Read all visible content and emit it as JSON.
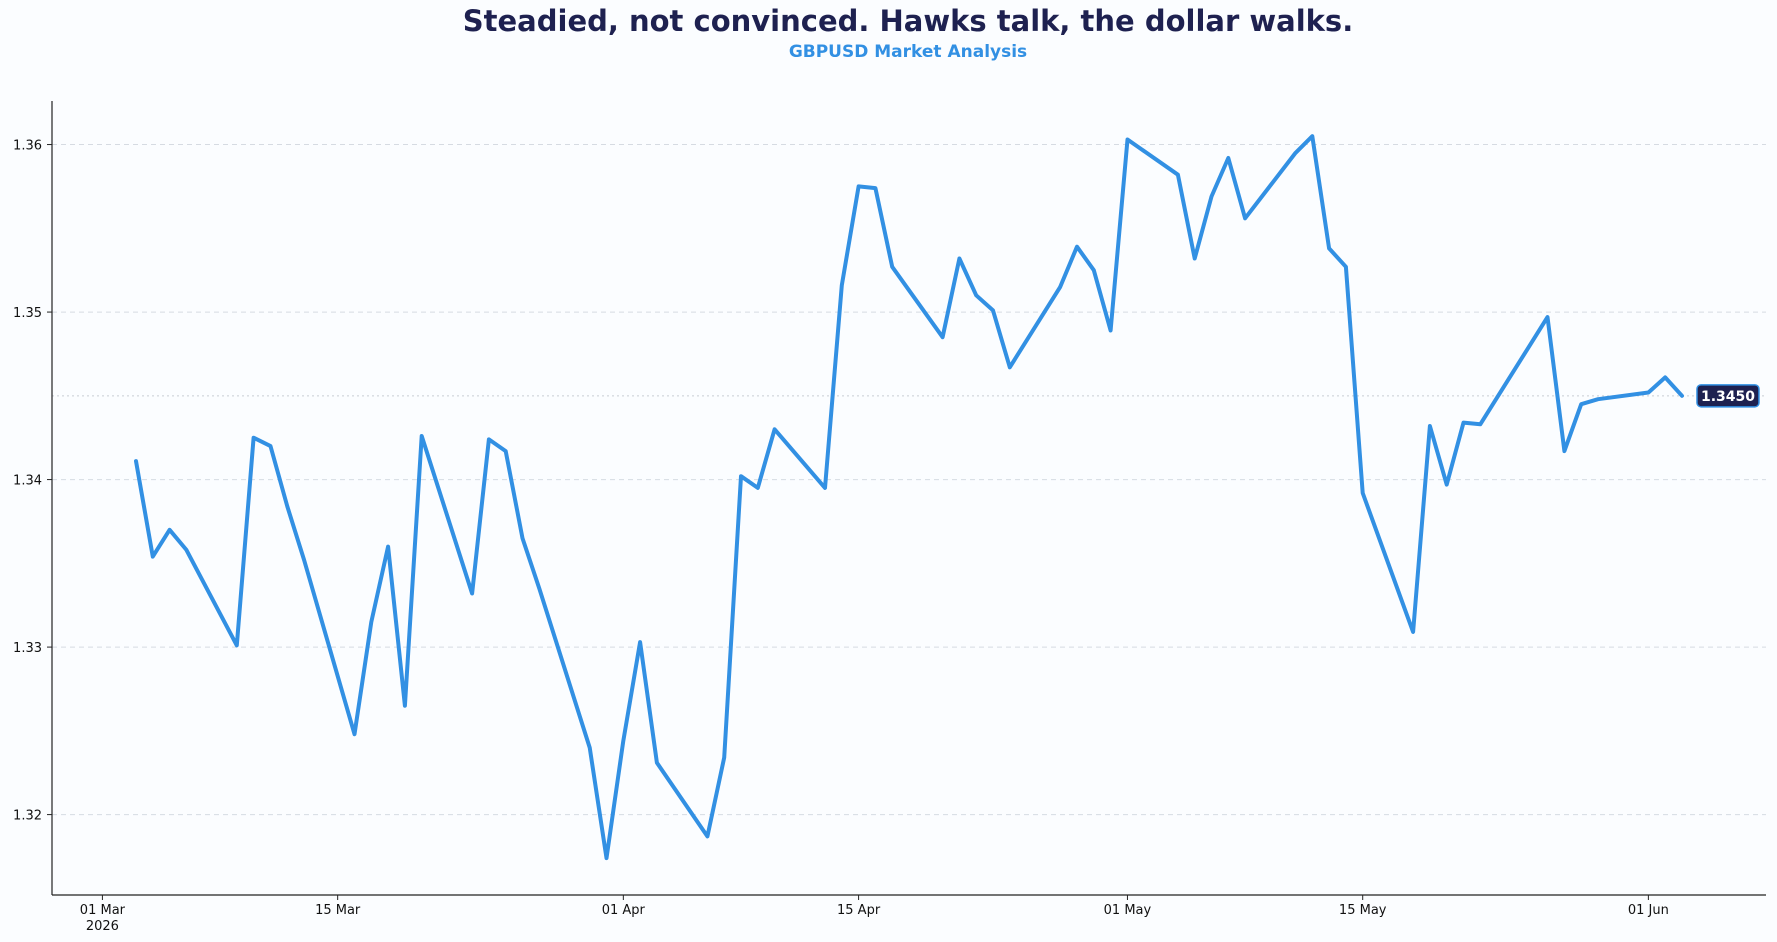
{
  "chart_data": {
    "type": "line",
    "title": "Steadied, not convinced. Hawks talk, the dollar walks.",
    "subtitle": "GBPUSD Market Analysis",
    "xlabel": "",
    "ylabel": "",
    "x_range": [
      "2026-02-26",
      "2026-06-08"
    ],
    "ylim": [
      1.3152,
      1.3626
    ],
    "y_ticks": [
      {
        "value": 1.32,
        "label": "1.32"
      },
      {
        "value": 1.33,
        "label": "1.33"
      },
      {
        "value": 1.34,
        "label": "1.34"
      },
      {
        "value": 1.35,
        "label": "1.35"
      },
      {
        "value": 1.36,
        "label": "1.36"
      }
    ],
    "x_ticks": [
      {
        "date": "2026-03-01",
        "label": "01 Mar",
        "sublabel": "2026"
      },
      {
        "date": "2026-03-15",
        "label": "15 Mar",
        "sublabel": ""
      },
      {
        "date": "2026-04-01",
        "label": "01 Apr",
        "sublabel": ""
      },
      {
        "date": "2026-04-15",
        "label": "15 Apr",
        "sublabel": ""
      },
      {
        "date": "2026-05-01",
        "label": "01 May",
        "sublabel": ""
      },
      {
        "date": "2026-05-15",
        "label": "15 May",
        "sublabel": ""
      },
      {
        "date": "2026-06-01",
        "label": "01 Jun",
        "sublabel": ""
      }
    ],
    "grid": "horizontal dashed",
    "reference_line": {
      "value": 1.345,
      "style": "dotted"
    },
    "last_value_label": "1.3450",
    "series": [
      {
        "name": "",
        "color": "#3290e3",
        "x": [
          "2026-03-03",
          "2026-03-04",
          "2026-03-05",
          "2026-03-06",
          "2026-03-09",
          "2026-03-10",
          "2026-03-11",
          "2026-03-12",
          "2026-03-13",
          "2026-03-16",
          "2026-03-17",
          "2026-03-18",
          "2026-03-19",
          "2026-03-20",
          "2026-03-23",
          "2026-03-24",
          "2026-03-25",
          "2026-03-26",
          "2026-03-27",
          "2026-03-30",
          "2026-03-31",
          "2026-04-01",
          "2026-04-02",
          "2026-04-03",
          "2026-04-06",
          "2026-04-07",
          "2026-04-08",
          "2026-04-09",
          "2026-04-10",
          "2026-04-13",
          "2026-04-14",
          "2026-04-15",
          "2026-04-16",
          "2026-04-17",
          "2026-04-20",
          "2026-04-21",
          "2026-04-22",
          "2026-04-23",
          "2026-04-24",
          "2026-04-27",
          "2026-04-28",
          "2026-04-29",
          "2026-04-30",
          "2026-05-01",
          "2026-05-04",
          "2026-05-05",
          "2026-05-06",
          "2026-05-07",
          "2026-05-08",
          "2026-05-11",
          "2026-05-12",
          "2026-05-13",
          "2026-05-14",
          "2026-05-15",
          "2026-05-18",
          "2026-05-19",
          "2026-05-20",
          "2026-05-21",
          "2026-05-22",
          "2026-05-25",
          "2026-05-26",
          "2026-05-27",
          "2026-05-28",
          "2026-05-29",
          "2026-06-01",
          "2026-06-02",
          "2026-06-03"
        ],
        "values": [
          1.3411,
          1.3354,
          1.337,
          1.3358,
          1.3301,
          1.3425,
          1.342,
          1.3384,
          1.3352,
          1.3248,
          1.3315,
          1.336,
          1.3265,
          1.3426,
          1.3332,
          1.3424,
          1.3417,
          1.3365,
          1.3335,
          1.324,
          1.3174,
          1.3244,
          1.3303,
          1.3231,
          1.3187,
          1.3234,
          1.3402,
          1.3395,
          1.343,
          1.3395,
          1.3516,
          1.3575,
          1.3574,
          1.3527,
          1.3485,
          1.3532,
          1.351,
          1.3501,
          1.3467,
          1.3515,
          1.3539,
          1.3525,
          1.3489,
          1.3603,
          1.3582,
          1.3532,
          1.3569,
          1.3592,
          1.3556,
          1.3595,
          1.3605,
          1.3538,
          1.3527,
          1.3392,
          1.3309,
          1.3432,
          1.3397,
          1.3434,
          1.3433,
          1.3481,
          1.3497,
          1.3417,
          1.3445,
          1.3448,
          1.3452,
          1.3461,
          1.345
        ]
      }
    ]
  }
}
